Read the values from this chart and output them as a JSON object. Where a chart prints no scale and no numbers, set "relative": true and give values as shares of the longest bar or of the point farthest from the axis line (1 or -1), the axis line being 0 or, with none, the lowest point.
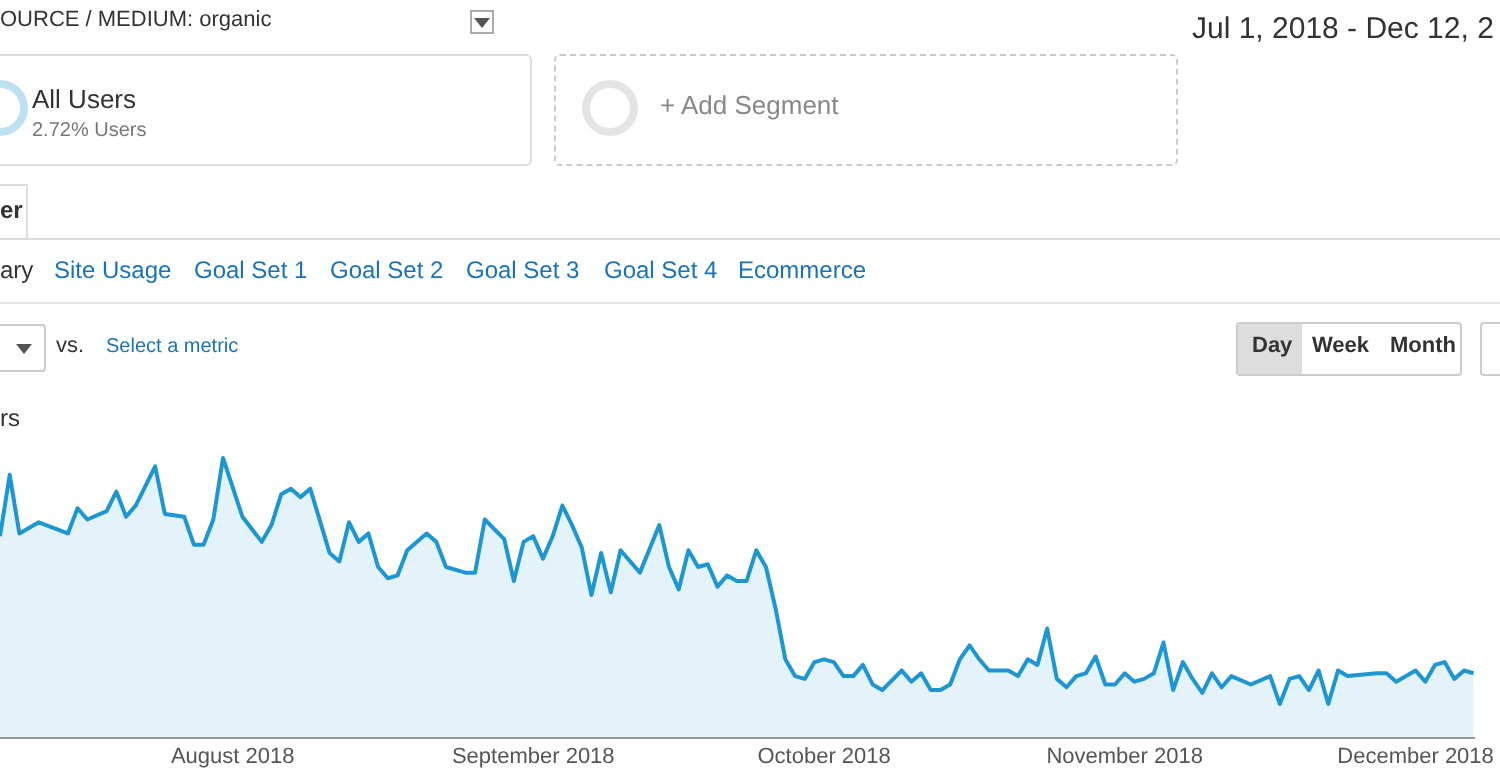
{
  "chart_data": {
    "type": "area",
    "relative": true,
    "legend": false,
    "grid": false,
    "ylabel": "rs",
    "annotations": [
      "OURCE / MEDIUM: organic",
      "Jul 1, 2018 - Dec 12, 2",
      "All Users",
      "2.72% Users",
      "+ Add Segment",
      "er",
      "ary",
      "Site Usage",
      "Goal Set 1",
      "Goal Set 2",
      "Goal Set 3",
      "Goal Set 4",
      "Ecommerce",
      "vs.",
      "Select a metric",
      "Day",
      "Week",
      "Month"
    ],
    "xlim": [
      "2018-07-08",
      "2018-12-07"
    ],
    "xticks": [
      {
        "value": "2018-08-01",
        "label": "August 2018"
      },
      {
        "value": "2018-09-01",
        "label": "September 2018"
      },
      {
        "value": "2018-10-01",
        "label": "October 2018"
      },
      {
        "value": "2018-11-01",
        "label": "November 2018"
      },
      {
        "value": "2018-12-01",
        "label": "December 2018"
      }
    ],
    "x": [
      "2018-07-08",
      "2018-07-09",
      "2018-07-10",
      "2018-07-12",
      "2018-07-15",
      "2018-07-16",
      "2018-07-17",
      "2018-07-19",
      "2018-07-20",
      "2018-07-21",
      "2018-07-22",
      "2018-07-24",
      "2018-07-25",
      "2018-07-27",
      "2018-07-28",
      "2018-07-29",
      "2018-07-30",
      "2018-07-31",
      "2018-08-02",
      "2018-08-04",
      "2018-08-05",
      "2018-08-06",
      "2018-08-07",
      "2018-08-08",
      "2018-08-09",
      "2018-08-11",
      "2018-08-12",
      "2018-08-13",
      "2018-08-14",
      "2018-08-15",
      "2018-08-16",
      "2018-08-17",
      "2018-08-18",
      "2018-08-19",
      "2018-08-21",
      "2018-08-22",
      "2018-08-23",
      "2018-08-25",
      "2018-08-26",
      "2018-08-27",
      "2018-08-29",
      "2018-08-30",
      "2018-08-31",
      "2018-09-01",
      "2018-09-02",
      "2018-09-03",
      "2018-09-04",
      "2018-09-05",
      "2018-09-06",
      "2018-09-07",
      "2018-09-08",
      "2018-09-09",
      "2018-09-10",
      "2018-09-12",
      "2018-09-14",
      "2018-09-15",
      "2018-09-16",
      "2018-09-17",
      "2018-09-18",
      "2018-09-19",
      "2018-09-20",
      "2018-09-21",
      "2018-09-22",
      "2018-09-23",
      "2018-09-24",
      "2018-09-25",
      "2018-09-26",
      "2018-09-27",
      "2018-09-28",
      "2018-09-29",
      "2018-09-30",
      "2018-10-01",
      "2018-10-02",
      "2018-10-03",
      "2018-10-04",
      "2018-10-05",
      "2018-10-06",
      "2018-10-07",
      "2018-10-09",
      "2018-10-10",
      "2018-10-11",
      "2018-10-12",
      "2018-10-13",
      "2018-10-14",
      "2018-10-15",
      "2018-10-16",
      "2018-10-17",
      "2018-10-18",
      "2018-10-19",
      "2018-10-20",
      "2018-10-21",
      "2018-10-22",
      "2018-10-23",
      "2018-10-24",
      "2018-10-25",
      "2018-10-26",
      "2018-10-27",
      "2018-10-28",
      "2018-10-29",
      "2018-10-30",
      "2018-10-31",
      "2018-11-01",
      "2018-11-02",
      "2018-11-03",
      "2018-11-04",
      "2018-11-05",
      "2018-11-06",
      "2018-11-07",
      "2018-11-08",
      "2018-11-09",
      "2018-11-10",
      "2018-11-11",
      "2018-11-12",
      "2018-11-14",
      "2018-11-16",
      "2018-11-17",
      "2018-11-18",
      "2018-11-19",
      "2018-11-20",
      "2018-11-21",
      "2018-11-22",
      "2018-11-23",
      "2018-11-24",
      "2018-11-27",
      "2018-11-28",
      "2018-11-29",
      "2018-12-01",
      "2018-12-02",
      "2018-12-03",
      "2018-12-04",
      "2018-12-05",
      "2018-12-06",
      "2018-12-07"
    ],
    "series": [
      {
        "color": "#1e96d2",
        "values": [
          0.72,
          0.94,
          0.73,
          0.77,
          0.73,
          0.82,
          0.78,
          0.81,
          0.88,
          0.79,
          0.83,
          0.97,
          0.8,
          0.79,
          0.69,
          0.69,
          0.78,
          1.0,
          0.79,
          0.7,
          0.76,
          0.87,
          0.89,
          0.86,
          0.89,
          0.66,
          0.63,
          0.77,
          0.7,
          0.73,
          0.61,
          0.57,
          0.58,
          0.67,
          0.73,
          0.7,
          0.61,
          0.59,
          0.59,
          0.78,
          0.71,
          0.56,
          0.7,
          0.72,
          0.64,
          0.72,
          0.83,
          0.76,
          0.68,
          0.51,
          0.66,
          0.52,
          0.67,
          0.59,
          0.76,
          0.61,
          0.53,
          0.67,
          0.61,
          0.62,
          0.54,
          0.58,
          0.56,
          0.56,
          0.67,
          0.61,
          0.46,
          0.28,
          0.22,
          0.21,
          0.27,
          0.28,
          0.27,
          0.22,
          0.22,
          0.26,
          0.19,
          0.17,
          0.24,
          0.2,
          0.23,
          0.17,
          0.17,
          0.19,
          0.28,
          0.33,
          0.28,
          0.24,
          0.24,
          0.24,
          0.22,
          0.28,
          0.26,
          0.39,
          0.21,
          0.18,
          0.22,
          0.23,
          0.29,
          0.19,
          0.19,
          0.23,
          0.2,
          0.21,
          0.23,
          0.34,
          0.17,
          0.27,
          0.21,
          0.16,
          0.23,
          0.18,
          0.22,
          0.19,
          0.22,
          0.12,
          0.21,
          0.22,
          0.17,
          0.24,
          0.12,
          0.24,
          0.22,
          0.23,
          0.23,
          0.2,
          0.24,
          0.2,
          0.26,
          0.27,
          0.21,
          0.24,
          0.23
        ]
      }
    ]
  }
}
